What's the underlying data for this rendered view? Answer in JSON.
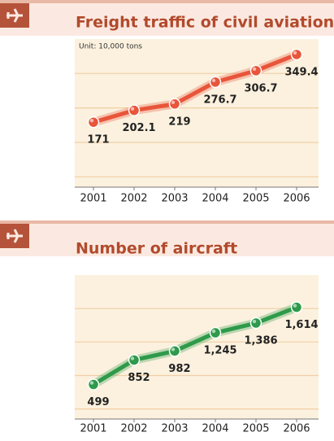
{
  "chart_data": [
    {
      "type": "line",
      "title": "Freight traffic of civil aviation",
      "subtitle": "Unit: 10,000 tons",
      "categories": [
        "2001",
        "2002",
        "2003",
        "2004",
        "2005",
        "2006"
      ],
      "values": [
        171,
        202.1,
        219,
        276.7,
        306.7,
        349.4
      ],
      "color": "#e8553a",
      "ylim": [
        0,
        390
      ],
      "grid": true
    },
    {
      "type": "line",
      "title": "Number of aircraft",
      "categories": [
        "2001",
        "2002",
        "2003",
        "2004",
        "2005",
        "2006"
      ],
      "values": [
        499,
        852,
        982,
        1245,
        1386,
        1614
      ],
      "value_labels": [
        "499",
        "852",
        "982",
        "1,245",
        "1,386",
        "1,614"
      ],
      "color": "#2e9a4a",
      "ylim": [
        0,
        2080
      ],
      "grid": true
    }
  ]
}
